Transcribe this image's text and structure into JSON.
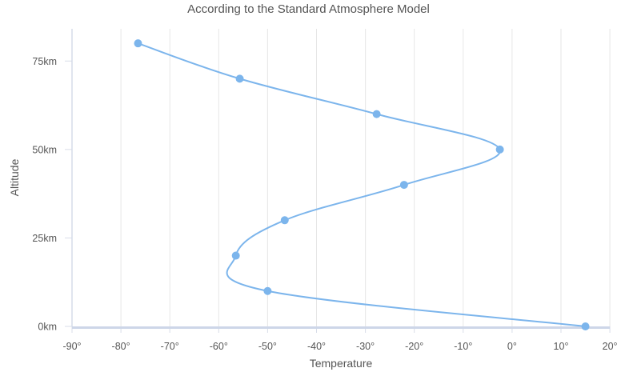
{
  "chart_data": {
    "type": "line",
    "title": "According to the Standard Atmosphere Model",
    "xlabel": "Temperature",
    "ylabel": "Altitude",
    "xlim": [
      -90,
      20
    ],
    "ylim": [
      0,
      85
    ],
    "x_ticks": [
      -90,
      -80,
      -70,
      -60,
      -50,
      -40,
      -30,
      -20,
      -10,
      0,
      10,
      20
    ],
    "x_tick_labels": [
      "-90°",
      "-80°",
      "-70°",
      "-60°",
      "-50°",
      "-40°",
      "-30°",
      "-20°",
      "-10°",
      "0°",
      "10°",
      "20°"
    ],
    "y_ticks": [
      0,
      25,
      50,
      75
    ],
    "y_tick_labels": [
      "0km",
      "25km",
      "50km",
      "75km"
    ],
    "grid": "vertical",
    "legend": "none",
    "series": [
      {
        "color": "#7cb5ec",
        "points": [
          {
            "x": 15.0,
            "y": 0
          },
          {
            "x": -50.0,
            "y": 10
          },
          {
            "x": -56.5,
            "y": 20
          },
          {
            "x": -46.5,
            "y": 30
          },
          {
            "x": -22.1,
            "y": 40
          },
          {
            "x": -2.5,
            "y": 50
          },
          {
            "x": -27.7,
            "y": 60
          },
          {
            "x": -55.7,
            "y": 70
          },
          {
            "x": -76.5,
            "y": 80
          }
        ]
      }
    ]
  }
}
